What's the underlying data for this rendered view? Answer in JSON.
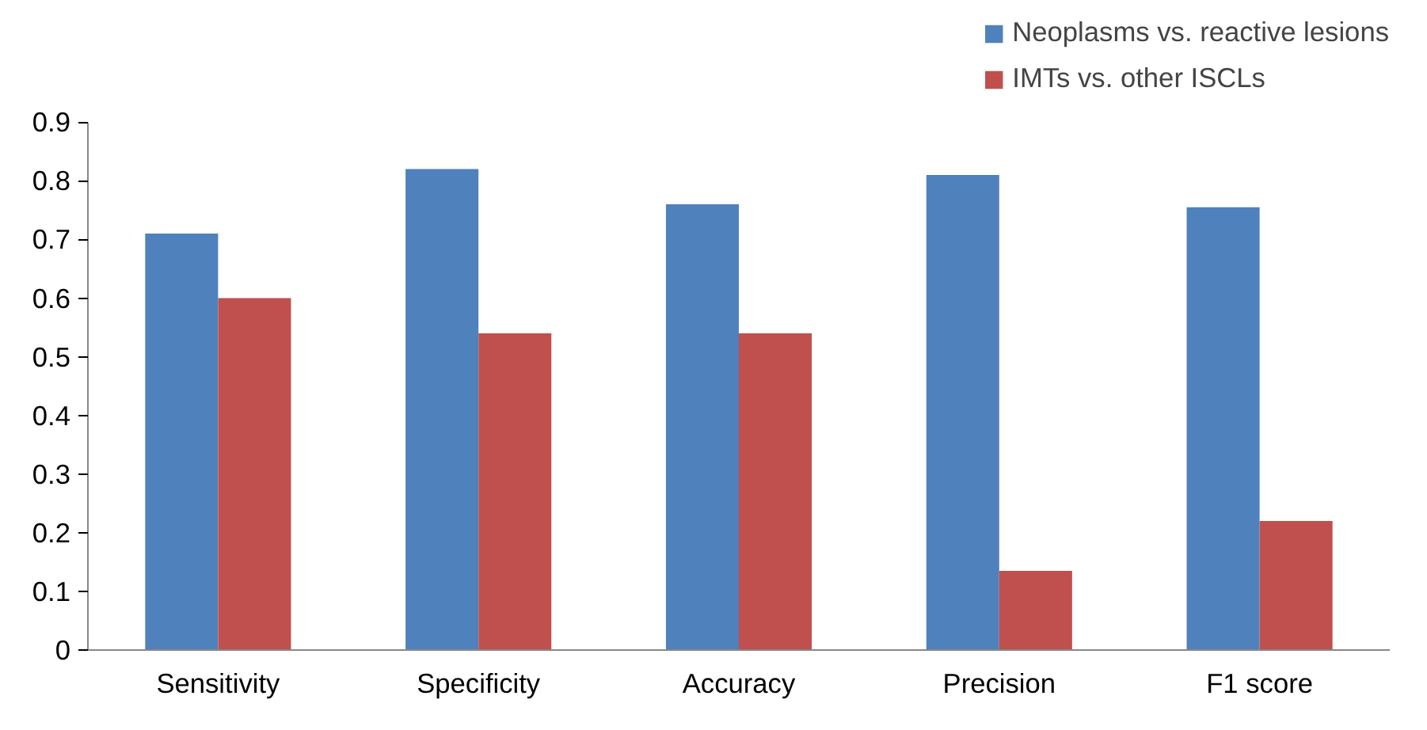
{
  "chart_data": {
    "type": "bar",
    "categories": [
      "Sensitivity",
      "Specificity",
      "Accuracy",
      "Precision",
      "F1 score"
    ],
    "series": [
      {
        "name": "Neoplasms vs. reactive lesions",
        "color": "#4f81bd",
        "values": [
          0.71,
          0.82,
          0.76,
          0.81,
          0.755
        ]
      },
      {
        "name": "IMTs vs. other ISCLs",
        "color": "#c0504d",
        "values": [
          0.6,
          0.54,
          0.54,
          0.135,
          0.22
        ]
      }
    ],
    "ylim": [
      0,
      0.9
    ],
    "yticks": [
      {
        "value": 0,
        "label": "0"
      },
      0.1,
      0.2,
      0.3,
      0.4,
      0.5,
      0.6,
      0.7,
      0.8,
      0.9
    ],
    "grid": false,
    "legend": "top right"
  }
}
